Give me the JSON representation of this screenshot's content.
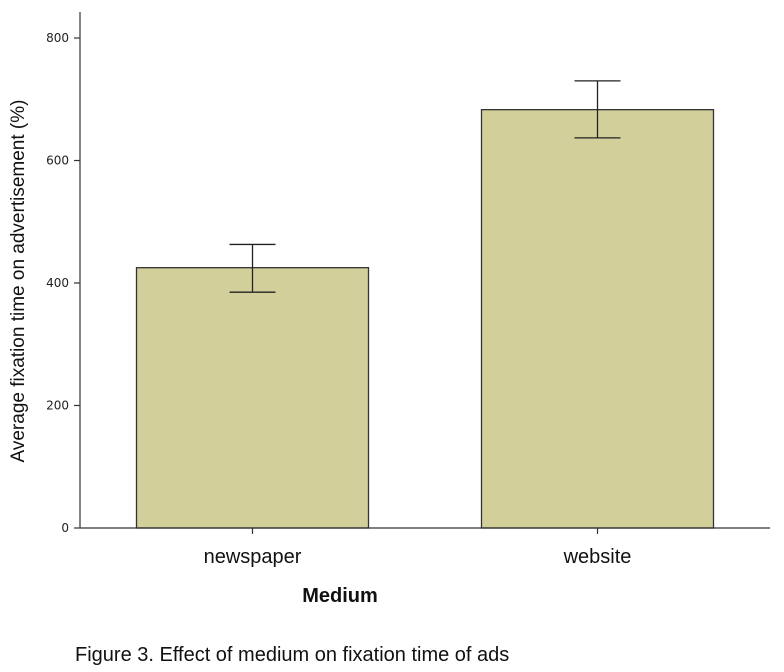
{
  "chart_data": {
    "type": "bar",
    "categories": [
      "newspaper",
      "website"
    ],
    "values": [
      425,
      683
    ],
    "error_bars": [
      {
        "low": 385,
        "high": 463
      },
      {
        "low": 637,
        "high": 730
      }
    ],
    "xlabel": "Medium",
    "ylabel": "Average fixation time on advertisement (%)",
    "ylim": [
      0,
      800
    ],
    "yticks": [
      0,
      200,
      400,
      600,
      800
    ],
    "grid": false,
    "bar_color": "#d3cf9b",
    "bar_edge_color": "#333333"
  },
  "caption": "Figure 3. Effect of medium on fixation time of ads"
}
